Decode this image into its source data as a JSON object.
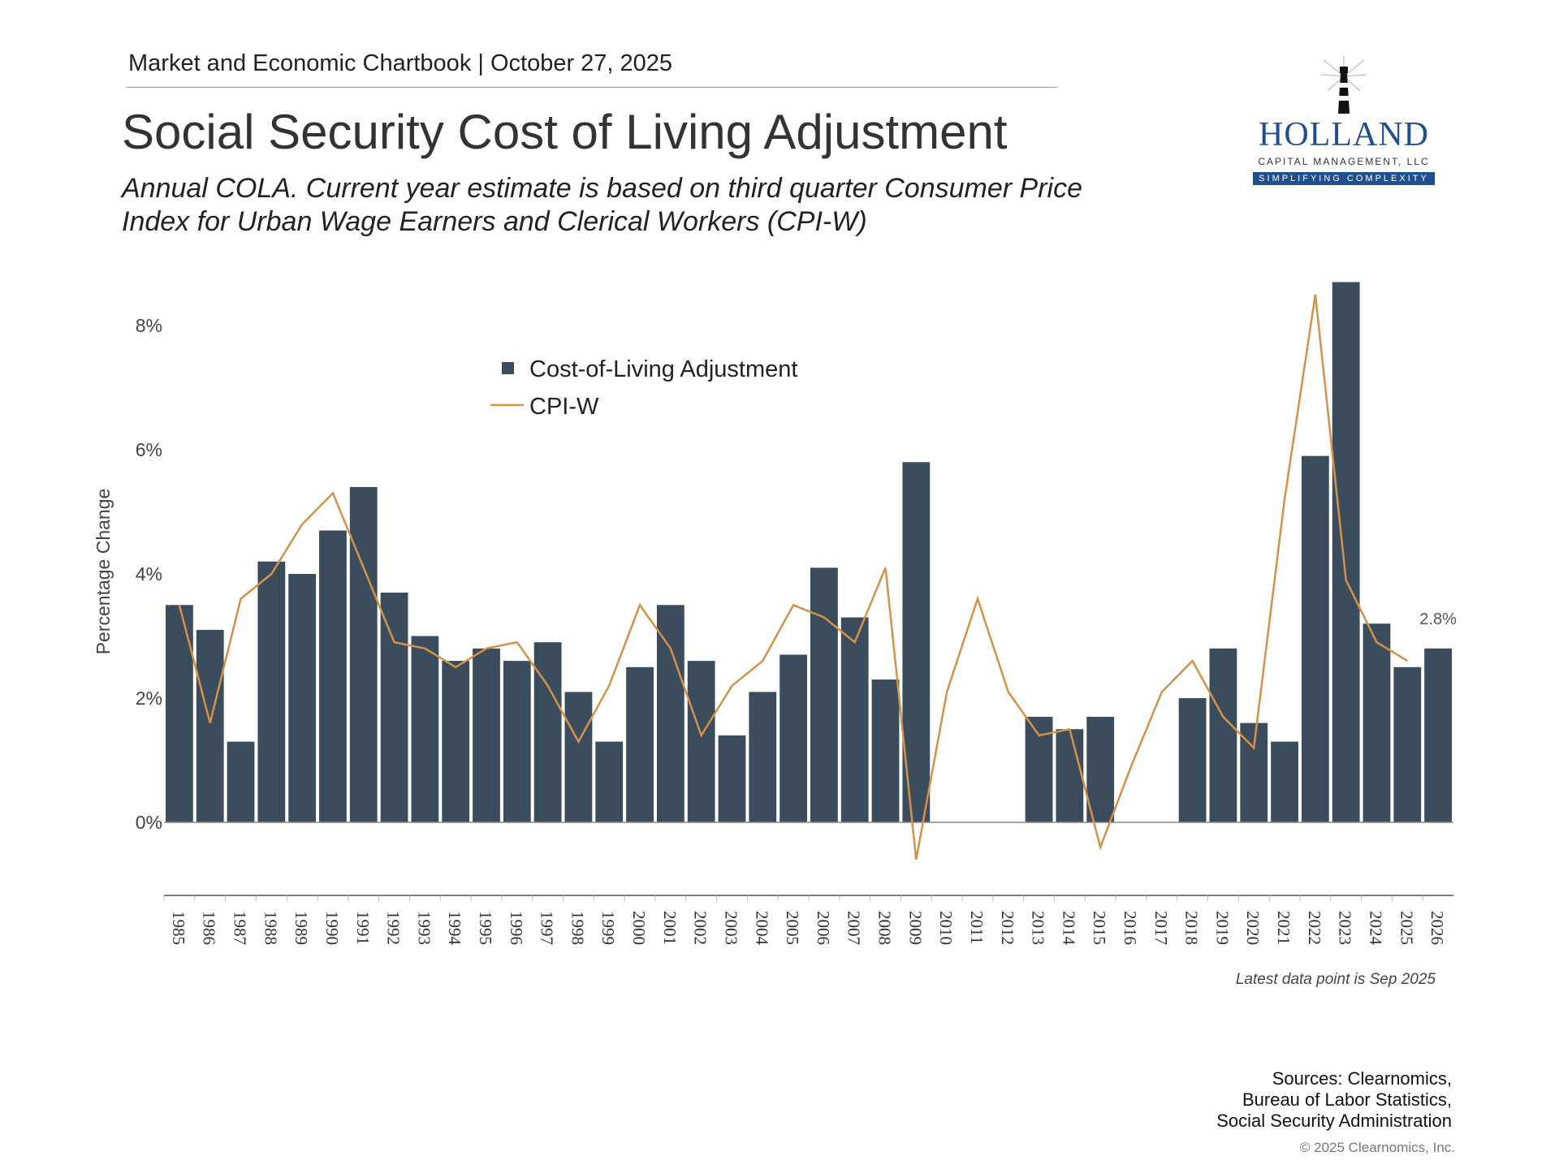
{
  "header": {
    "text": "Market and Economic Chartbook | October 27, 2025"
  },
  "title": "Social Security Cost of Living Adjustment",
  "subtitle": "Annual COLA. Current year estimate is based on third quarter Consumer Price Index for Urban Wage Earners and Clerical Workers (CPI-W)",
  "logo": {
    "name": "HOLLAND",
    "caption": "CAPITAL MANAGEMENT, LLC",
    "tagline": "SIMPLIFYING COMPLEXITY"
  },
  "chart_data": {
    "type": "bar",
    "title": "",
    "xlabel": "",
    "ylabel": "Percentage Change",
    "ylim": [
      -1.2,
      8.9
    ],
    "yticks": [
      0,
      2,
      4,
      6,
      8
    ],
    "ytick_labels": [
      "0%",
      "2%",
      "4%",
      "6%",
      "8%"
    ],
    "grid": false,
    "legend_placement": "top-center",
    "categories": [
      "1985",
      "1986",
      "1987",
      "1988",
      "1989",
      "1990",
      "1991",
      "1992",
      "1993",
      "1994",
      "1995",
      "1996",
      "1997",
      "1998",
      "1999",
      "2000",
      "2001",
      "2002",
      "2003",
      "2004",
      "2005",
      "2006",
      "2007",
      "2008",
      "2009",
      "2010",
      "2011",
      "2012",
      "2013",
      "2014",
      "2015",
      "2016",
      "2017",
      "2018",
      "2019",
      "2020",
      "2021",
      "2022",
      "2023",
      "2024",
      "2025",
      "2026"
    ],
    "series": [
      {
        "name": "Cost-of-Living Adjustment",
        "type": "bar",
        "color": "#3b4d5c",
        "values": [
          3.5,
          3.1,
          1.3,
          4.2,
          4.0,
          4.7,
          5.4,
          3.7,
          3.0,
          2.6,
          2.8,
          2.6,
          2.9,
          2.1,
          1.3,
          2.5,
          3.5,
          2.6,
          1.4,
          2.1,
          2.7,
          4.1,
          3.3,
          2.3,
          5.8,
          0,
          0,
          0,
          1.7,
          1.5,
          1.7,
          0,
          0,
          2.0,
          2.8,
          1.6,
          1.3,
          5.9,
          8.7,
          3.2,
          2.5,
          2.8
        ]
      },
      {
        "name": "CPI-W",
        "type": "line",
        "color": "#d4914a",
        "values": [
          3.5,
          1.6,
          3.6,
          4.0,
          4.8,
          5.3,
          4.1,
          2.9,
          2.8,
          2.5,
          2.8,
          2.9,
          2.2,
          1.3,
          2.2,
          3.5,
          2.8,
          1.4,
          2.2,
          2.6,
          3.5,
          3.3,
          2.9,
          4.1,
          -0.6,
          2.1,
          3.6,
          2.1,
          1.4,
          1.5,
          -0.4,
          0.9,
          2.1,
          2.6,
          1.7,
          1.2,
          5.2,
          8.5,
          3.9,
          2.9,
          2.6,
          null
        ]
      }
    ],
    "annotations": [
      {
        "category": "2026",
        "text": "2.8%"
      }
    ]
  },
  "footnote": "Latest data point is Sep 2025",
  "sources": [
    "Sources: Clearnomics,",
    "Bureau of Labor Statistics,",
    "Social Security Administration"
  ],
  "copyright": "© 2025 Clearnomics, Inc."
}
